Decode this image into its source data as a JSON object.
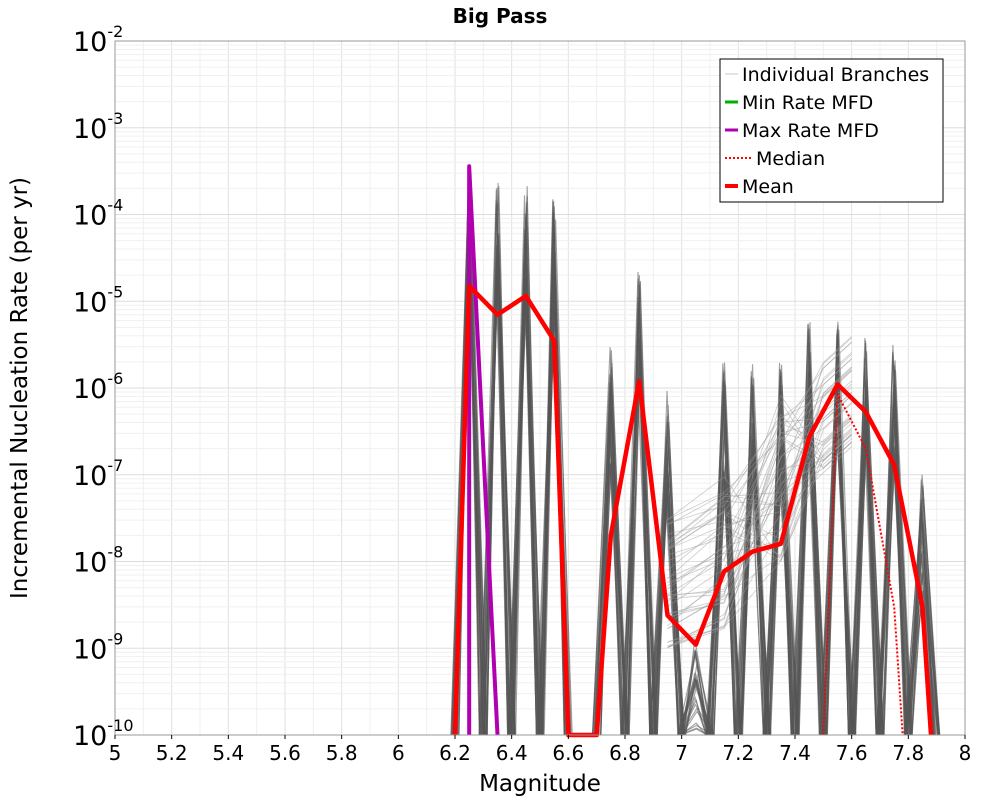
{
  "chart_data": {
    "type": "line",
    "title": "Big Pass",
    "xlabel": "Magnitude",
    "ylabel": "Incremental Nucleation Rate (per yr)",
    "xlim": [
      5,
      8
    ],
    "ylim_log10": [
      -10,
      -2
    ],
    "yscale": "log",
    "grid": true,
    "legend_position": "top-right",
    "x_ticks": [
      5,
      5.2,
      5.4,
      5.6,
      5.8,
      6,
      6.2,
      6.4,
      6.6,
      6.8,
      7,
      7.2,
      7.4,
      7.6,
      7.8,
      8
    ],
    "x_tick_labels": [
      "5",
      "5.2",
      "5.4",
      "5.6",
      "5.8",
      "6",
      "6.2",
      "6.4",
      "6.6",
      "6.8",
      "7",
      "7.2",
      "7.4",
      "7.6",
      "7.8",
      "8"
    ],
    "y_tick_exponents": [
      -2,
      -3,
      -4,
      -5,
      -6,
      -7,
      -8,
      -9,
      -10
    ],
    "y_tick_base": "10",
    "legend": [
      {
        "name": "Individual Branches",
        "color": "#c8c8c8",
        "style": "solid",
        "width": 1
      },
      {
        "name": "Min Rate MFD",
        "color": "#00b000",
        "style": "solid",
        "width": 3
      },
      {
        "name": "Max Rate MFD",
        "color": "#b000b0",
        "style": "solid",
        "width": 3
      },
      {
        "name": "Median",
        "color": "#ff0000",
        "style": "dotted",
        "width": 2
      },
      {
        "name": "Mean",
        "color": "#ff0000",
        "style": "solid",
        "width": 4
      }
    ],
    "series": [
      {
        "name": "Max Rate MFD",
        "color": "#b000b0",
        "x": [
          6.25,
          6.25,
          6.35
        ],
        "y": [
          1e-10,
          0.00036,
          1e-10
        ]
      },
      {
        "name": "Mean",
        "color": "#ff0000",
        "x": [
          6.2,
          6.25,
          6.35,
          6.45,
          6.55,
          6.6,
          6.7,
          6.75,
          6.85,
          6.95,
          7.05,
          7.15,
          7.25,
          7.35,
          7.45,
          7.55,
          7.65,
          7.75,
          7.85,
          7.88
        ],
        "y": [
          1e-10,
          1.5e-05,
          7e-06,
          1.15e-05,
          3.5e-06,
          1e-10,
          1e-10,
          2e-08,
          1.2e-06,
          2.4e-09,
          1.1e-09,
          7.7e-09,
          1.3e-08,
          1.6e-08,
          2.7e-07,
          1.1e-06,
          5.3e-07,
          1.3e-07,
          3e-09,
          1e-10
        ]
      },
      {
        "name": "Median",
        "color": "#ff0000",
        "x": [
          7.5,
          7.55,
          7.65,
          7.75,
          7.78
        ],
        "y": [
          1e-10,
          8.5e-07,
          2e-07,
          3e-09,
          1e-10
        ]
      },
      {
        "name": "Individual Branches (envelope peaks)",
        "color": "#555555",
        "x": [
          6.25,
          6.35,
          6.45,
          6.55,
          6.75,
          6.85,
          6.95,
          7.05,
          7.15,
          7.25,
          7.35,
          7.45,
          7.55,
          7.65,
          7.75,
          7.85
        ],
        "y": [
          0.00035,
          0.00025,
          0.00025,
          0.00015,
          3e-06,
          2.5e-05,
          1e-06,
          2e-09,
          2e-06,
          2e-06,
          2e-06,
          6e-06,
          7e-06,
          6e-06,
          3.5e-06,
          1e-07
        ]
      }
    ]
  }
}
